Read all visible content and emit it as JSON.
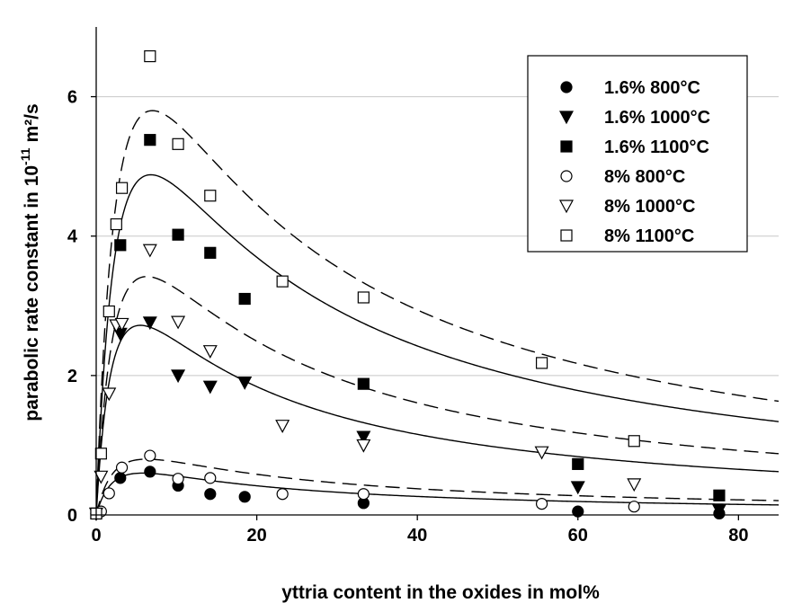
{
  "chart_data": {
    "type": "scatter",
    "xlabel": "yttria content in the oxides in mol%",
    "ylabel_main": "parabolic rate constant in 10",
    "ylabel_exp": "-11",
    "ylabel_unit": "m²/s",
    "xlim": [
      0,
      85
    ],
    "ylim": [
      0,
      7
    ],
    "x_ticks": [
      0,
      20,
      40,
      60,
      80
    ],
    "y_ticks": [
      0,
      2,
      4,
      6
    ],
    "grid": "horizontal",
    "legend_placement": "top-right",
    "series": [
      {
        "name": "1.6% 800°C",
        "marker": "filled-circle",
        "points": [
          [
            0,
            0.02
          ],
          [
            3,
            0.53
          ],
          [
            6.7,
            0.62
          ],
          [
            10.2,
            0.42
          ],
          [
            14.2,
            0.3
          ],
          [
            18.5,
            0.26
          ],
          [
            33.3,
            0.17
          ],
          [
            60,
            0.05
          ],
          [
            77.6,
            0.02
          ]
        ],
        "fit": {
          "a": 0.6,
          "m": 5.8,
          "style": "solid"
        }
      },
      {
        "name": "1.6% 1000°C",
        "marker": "filled-triangle-down",
        "points": [
          [
            0,
            0.02
          ],
          [
            3,
            2.6
          ],
          [
            6.7,
            2.76
          ],
          [
            10.2,
            2.0
          ],
          [
            14.2,
            1.84
          ],
          [
            18.5,
            1.9
          ],
          [
            33.3,
            1.12
          ],
          [
            60,
            0.4
          ],
          [
            77.6,
            0.07
          ]
        ],
        "fit": {
          "a": 2.72,
          "m": 5.5,
          "style": "solid"
        }
      },
      {
        "name": "1.6% 1100°C",
        "marker": "filled-square",
        "points": [
          [
            0,
            0.02
          ],
          [
            3,
            3.87
          ],
          [
            6.7,
            5.38
          ],
          [
            10.2,
            4.02
          ],
          [
            14.2,
            3.76
          ],
          [
            18.5,
            3.1
          ],
          [
            33.3,
            1.88
          ],
          [
            60,
            0.73
          ],
          [
            77.6,
            0.28
          ]
        ],
        "fit": {
          "a": 4.88,
          "m": 6.8,
          "style": "solid"
        }
      },
      {
        "name": "8% 800°C",
        "marker": "open-circle",
        "points": [
          [
            0,
            0.02
          ],
          [
            0.6,
            0.05
          ],
          [
            1.6,
            0.31
          ],
          [
            3.2,
            0.68
          ],
          [
            6.7,
            0.85
          ],
          [
            10.2,
            0.52
          ],
          [
            14.2,
            0.53
          ],
          [
            23.2,
            0.3
          ],
          [
            33.3,
            0.3
          ],
          [
            55.5,
            0.16
          ],
          [
            67,
            0.12
          ]
        ],
        "fit": {
          "a": 0.8,
          "m": 6.3,
          "style": "dashed"
        }
      },
      {
        "name": "8% 1000°C",
        "marker": "open-triangle-down",
        "points": [
          [
            0,
            0.02
          ],
          [
            0.6,
            0.55
          ],
          [
            1.6,
            1.74
          ],
          [
            2.5,
            2.72
          ],
          [
            3.2,
            2.74
          ],
          [
            6.7,
            3.8
          ],
          [
            10.2,
            2.77
          ],
          [
            14.2,
            2.35
          ],
          [
            23.2,
            1.28
          ],
          [
            33.3,
            1.0
          ],
          [
            55.5,
            0.9
          ],
          [
            67,
            0.44
          ]
        ],
        "fit": {
          "a": 3.42,
          "m": 6.3,
          "style": "dashed"
        }
      },
      {
        "name": "8% 1100°C",
        "marker": "open-square",
        "points": [
          [
            0,
            0.02
          ],
          [
            0.6,
            0.88
          ],
          [
            1.6,
            2.92
          ],
          [
            2.5,
            4.17
          ],
          [
            3.2,
            4.69
          ],
          [
            6.7,
            6.58
          ],
          [
            10.2,
            5.32
          ],
          [
            14.2,
            4.58
          ],
          [
            23.2,
            3.35
          ],
          [
            33.3,
            3.12
          ],
          [
            55.5,
            2.18
          ],
          [
            67,
            1.06
          ]
        ],
        "fit": {
          "a": 5.8,
          "m": 7.0,
          "style": "dashed"
        }
      }
    ]
  }
}
